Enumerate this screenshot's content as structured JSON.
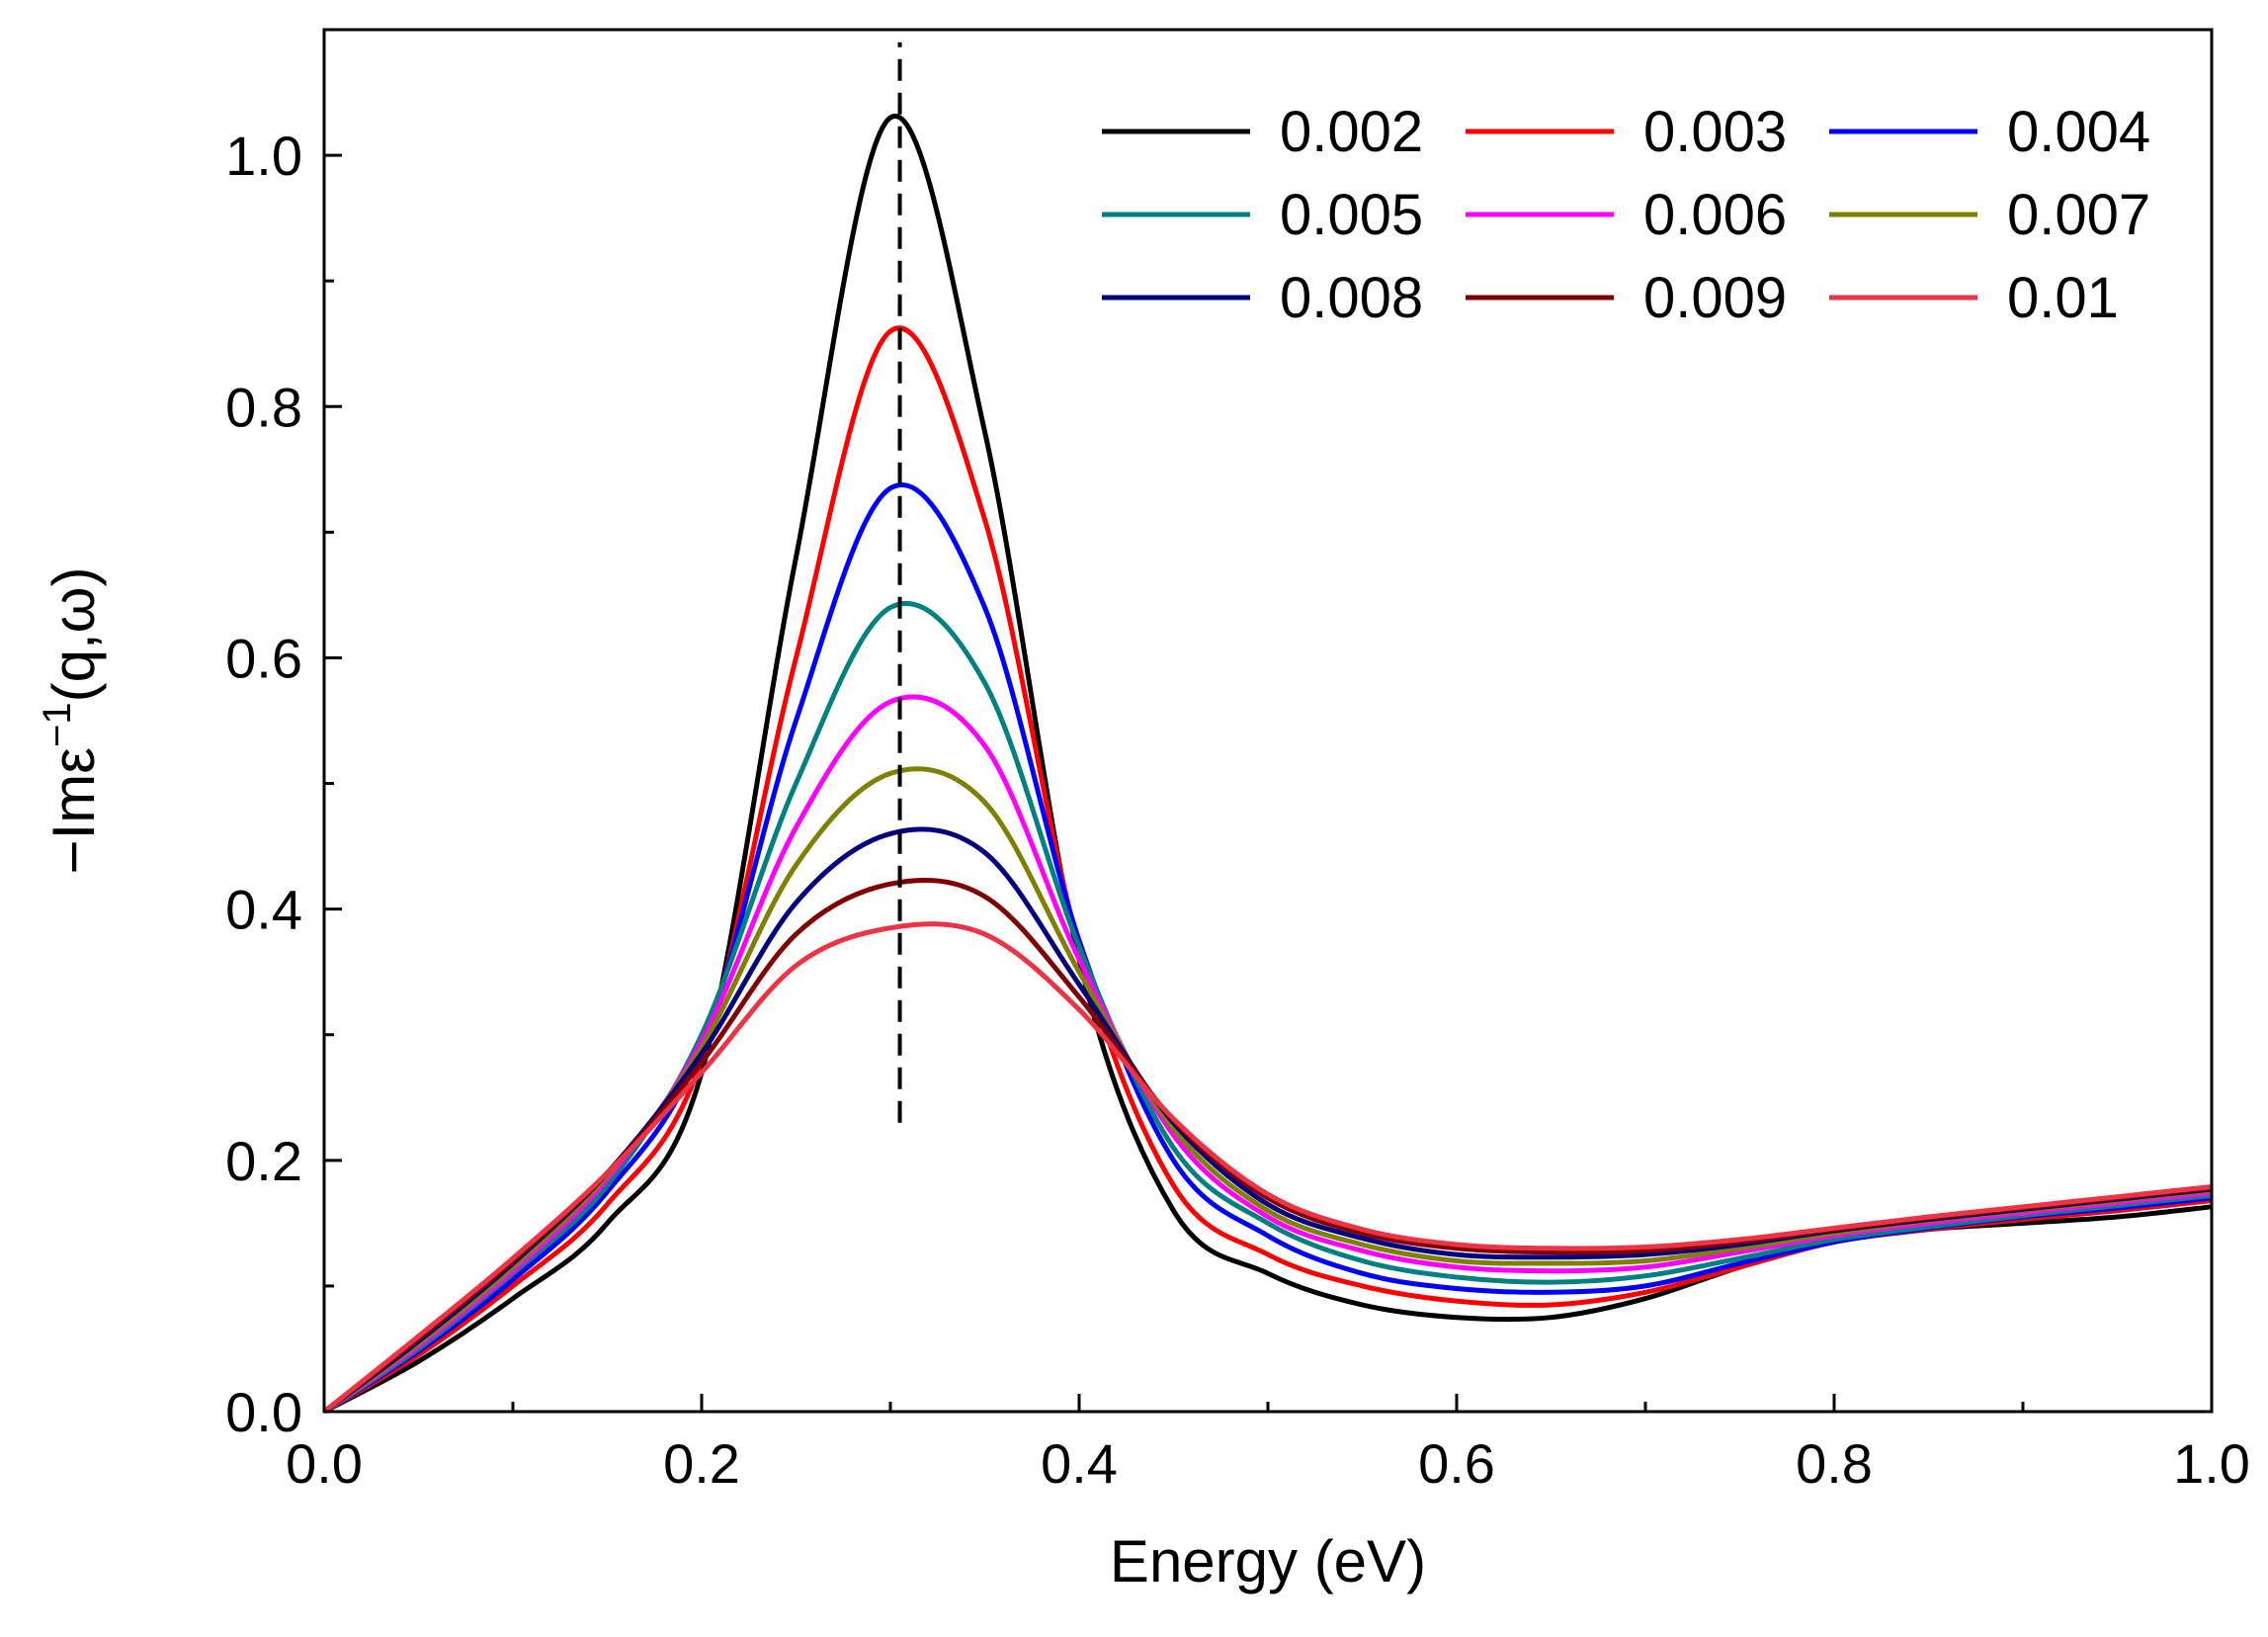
{
  "chart_data": {
    "type": "line",
    "xlabel": "Energy (eV)",
    "ylabel": {
      "prefix": "−Imε",
      "sup": "−1",
      "suffix": "(q,ω)"
    },
    "xlim": [
      0,
      1.0
    ],
    "ylim": [
      0,
      1.1
    ],
    "x_ticks": [
      0.0,
      0.2,
      0.4,
      0.6,
      0.8,
      1.0
    ],
    "x_tick_labels": [
      "0.0",
      "0.2",
      "0.4",
      "0.6",
      "0.8",
      "1.0"
    ],
    "y_ticks": [
      0.0,
      0.2,
      0.4,
      0.6,
      0.8,
      1.0
    ],
    "y_tick_labels": [
      "0.0",
      "0.2",
      "0.4",
      "0.6",
      "0.8",
      "1.0"
    ],
    "grid": false,
    "legend": "top-right",
    "reference_line": {
      "x": 0.305,
      "y_range": [
        0.23,
        1.09
      ],
      "style": "dashed",
      "color": "#000000"
    },
    "x": [
      0.0,
      0.05,
      0.1,
      0.15,
      0.2,
      0.25,
      0.3,
      0.35,
      0.4,
      0.45,
      0.5,
      0.55,
      0.6,
      0.65,
      0.7,
      0.75,
      0.8,
      0.85,
      0.9,
      0.95,
      1.0
    ],
    "series": [
      {
        "name": "0.002",
        "color": "#000000",
        "values": [
          0.0,
          0.04,
          0.09,
          0.15,
          0.27,
          0.68,
          1.03,
          0.78,
          0.36,
          0.16,
          0.11,
          0.085,
          0.075,
          0.075,
          0.09,
          0.115,
          0.135,
          0.145,
          0.15,
          0.155,
          0.163
        ]
      },
      {
        "name": "0.003",
        "color": "#ff0000",
        "values": [
          0.0,
          0.045,
          0.1,
          0.165,
          0.28,
          0.6,
          0.86,
          0.71,
          0.37,
          0.18,
          0.125,
          0.1,
          0.088,
          0.085,
          0.095,
          0.115,
          0.135,
          0.145,
          0.153,
          0.16,
          0.168
        ]
      },
      {
        "name": "0.004",
        "color": "#0000ff",
        "values": [
          0.0,
          0.048,
          0.105,
          0.175,
          0.29,
          0.55,
          0.735,
          0.64,
          0.375,
          0.2,
          0.14,
          0.11,
          0.098,
          0.095,
          0.1,
          0.118,
          0.135,
          0.146,
          0.155,
          0.162,
          0.17
        ]
      },
      {
        "name": "0.005",
        "color": "#008080",
        "values": [
          0.0,
          0.05,
          0.11,
          0.18,
          0.3,
          0.5,
          0.64,
          0.58,
          0.37,
          0.21,
          0.15,
          0.12,
          0.107,
          0.103,
          0.108,
          0.122,
          0.137,
          0.147,
          0.156,
          0.164,
          0.172
        ]
      },
      {
        "name": "0.006",
        "color": "#ff00ff",
        "values": [
          0.0,
          0.052,
          0.112,
          0.185,
          0.295,
          0.465,
          0.565,
          0.53,
          0.36,
          0.22,
          0.155,
          0.128,
          0.115,
          0.112,
          0.115,
          0.127,
          0.14,
          0.15,
          0.158,
          0.166,
          0.174
        ]
      },
      {
        "name": "0.007",
        "color": "#808000",
        "values": [
          0.0,
          0.054,
          0.115,
          0.188,
          0.29,
          0.435,
          0.508,
          0.485,
          0.35,
          0.225,
          0.16,
          0.133,
          0.12,
          0.118,
          0.12,
          0.13,
          0.142,
          0.152,
          0.16,
          0.168,
          0.176
        ]
      },
      {
        "name": "0.008",
        "color": "#000080",
        "values": [
          0.0,
          0.056,
          0.118,
          0.19,
          0.285,
          0.405,
          0.46,
          0.445,
          0.34,
          0.23,
          0.165,
          0.138,
          0.125,
          0.123,
          0.125,
          0.133,
          0.144,
          0.153,
          0.161,
          0.169,
          0.177
        ]
      },
      {
        "name": "0.009",
        "color": "#800000",
        "values": [
          0.0,
          0.058,
          0.12,
          0.19,
          0.278,
          0.38,
          0.42,
          0.41,
          0.33,
          0.232,
          0.17,
          0.142,
          0.13,
          0.127,
          0.128,
          0.135,
          0.145,
          0.154,
          0.162,
          0.17,
          0.178
        ]
      },
      {
        "name": "0.01",
        "color": "#ee3344",
        "values": [
          0.0,
          0.06,
          0.122,
          0.19,
          0.27,
          0.355,
          0.385,
          0.38,
          0.32,
          0.233,
          0.173,
          0.145,
          0.133,
          0.13,
          0.131,
          0.137,
          0.146,
          0.155,
          0.163,
          0.171,
          0.179
        ]
      }
    ]
  }
}
